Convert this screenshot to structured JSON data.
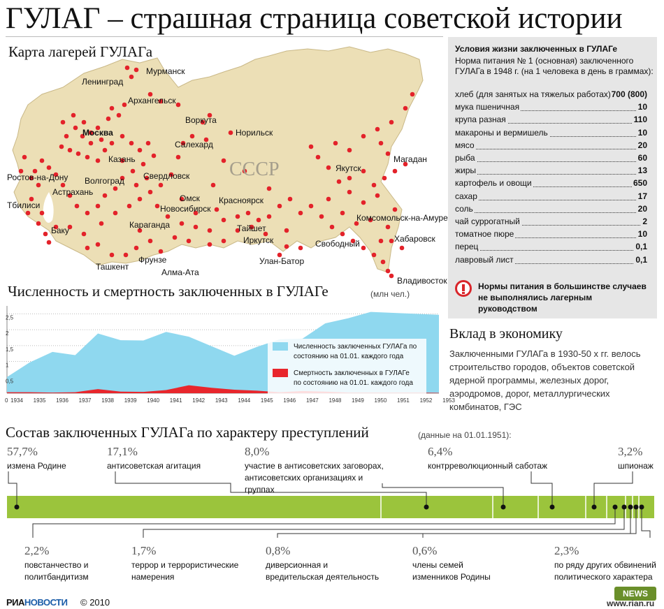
{
  "title": "ГУЛАГ – страшная страница советской истории",
  "map": {
    "title": "Карта лагерей ГУЛАГа",
    "country_label": "СССР",
    "cities": [
      "Мурманск",
      "Ленинград",
      "Архангельск",
      "Москва",
      "Воркута",
      "Салехард",
      "Норильск",
      "Казань",
      "Волгоград",
      "Астрахань",
      "Ростов-на-Дону",
      "Тбилиси",
      "Баку",
      "Свердловск",
      "Омск",
      "Новосибирск",
      "Красноярск",
      "Караганда",
      "Тайшет",
      "Иркутск",
      "Фрунзе",
      "Ташкент",
      "Алма-Ата",
      "Улан-Батор",
      "Свободный",
      "Якутск",
      "Магадан",
      "Комсомольск-на-Амуре",
      "Хабаровск",
      "Владивосток"
    ],
    "colors": {
      "land": "#ecdfb6",
      "border": "#c9b887",
      "camp": "#e3222a"
    }
  },
  "conditions": {
    "title": "Условия жизни заключенных в ГУЛАГе",
    "note": "Норма питания № 1 (основная) заключенного ГУЛАГа в 1948 г. (на 1 человека в день в граммах):",
    "rows": [
      {
        "label": "хлеб (для занятых на тяжелых работах)",
        "value": "700 (800)"
      },
      {
        "label": "мука пшеничная",
        "value": "10"
      },
      {
        "label": "крупа разная",
        "value": "110"
      },
      {
        "label": "макароны и вермишель",
        "value": "10"
      },
      {
        "label": "мясо",
        "value": "20"
      },
      {
        "label": "рыба",
        "value": "60"
      },
      {
        "label": "жиры",
        "value": "13"
      },
      {
        "label": "картофель и овощи",
        "value": "650"
      },
      {
        "label": "сахар",
        "value": "17"
      },
      {
        "label": "соль",
        "value": "20"
      },
      {
        "label": "чай суррогатный",
        "value": "2"
      },
      {
        "label": "томатное пюре",
        "value": "10"
      },
      {
        "label": "перец",
        "value": "0,1"
      },
      {
        "label": "лавровый лист",
        "value": "0,1"
      }
    ],
    "warning": "Нормы питания в большинстве случаев не выполнялись лагерным руководством",
    "warning_icon": "exclamation-icon"
  },
  "economy": {
    "title": "Вклад в экономику",
    "text": "Заключенными ГУЛАГа в 1930-50 х гг. велось строительство городов, объектов советской ядерной программы, железных дорог, аэродромов, дорог, металлургических комбинатов, ГЭС"
  },
  "chart_data": {
    "type": "area",
    "title": "Численность и смертность заключенных в ГУЛАГе",
    "unit": "(млн чел.)",
    "x": [
      "1934",
      "1935",
      "1936",
      "1937",
      "1938",
      "1939",
      "1940",
      "1941",
      "1942",
      "1943",
      "1944",
      "1945",
      "1946",
      "1947",
      "1948",
      "1949",
      "1950",
      "1951",
      "1952",
      "1953"
    ],
    "ylim": [
      0,
      2.75
    ],
    "yticks": [
      "0",
      "0,5",
      "1",
      "1,5",
      "2",
      "2,5"
    ],
    "series": [
      {
        "name": "Численность заключенных ГУЛАГа по состоянию на 01.01. каждого года",
        "color": "#8fd8ef",
        "values": [
          0.51,
          0.97,
          1.3,
          1.2,
          1.88,
          1.67,
          1.66,
          1.93,
          1.78,
          1.48,
          1.18,
          1.46,
          1.7,
          1.72,
          2.2,
          2.36,
          2.56,
          2.53,
          2.5,
          2.47
        ]
      },
      {
        "name": "Смертность заключенных в ГУЛАГе по состоянию на 01.01. каждого года",
        "color": "#e8262c",
        "values": [
          0.03,
          0.03,
          0.02,
          0.03,
          0.13,
          0.05,
          0.04,
          0.1,
          0.25,
          0.17,
          0.11,
          0.08,
          0.03,
          0.07,
          0.05,
          0.02,
          0.02,
          0.02,
          0.02,
          0.01
        ]
      }
    ],
    "legend_placement": "right-center"
  },
  "composition": {
    "title": "Состав заключенных ГУЛАГа по характеру преступлений",
    "note": "(данные на 01.01.1951):",
    "bar_color": "#9bc43c",
    "top": [
      {
        "pct": "57,7%",
        "label": "измена Родине"
      },
      {
        "pct": "17,1%",
        "label": "антисоветская агитация"
      },
      {
        "pct": "8,0%",
        "label": "участие в антисоветских заговорах, антисоветских организациях и группах"
      },
      {
        "pct": "6,4%",
        "label": "контрреволюционный саботаж"
      },
      {
        "pct": "3,2%",
        "label": "шпионаж"
      }
    ],
    "bottom": [
      {
        "pct": "2,2%",
        "label": "повстанчество и политбандитизм"
      },
      {
        "pct": "1,7%",
        "label": "террор и террористические намерения"
      },
      {
        "pct": "0,8%",
        "label": "диверсионная и вредительская деятельность"
      },
      {
        "pct": "0,6%",
        "label": "члены семей изменников Родины"
      },
      {
        "pct": "2,3%",
        "label": "по ряду других обвинений политического характера"
      }
    ]
  },
  "footer": {
    "logo_a": "РИА",
    "logo_b": "НОВОСТИ",
    "copyright": "© 2010",
    "badge": "NEWS",
    "url": "www.rian.ru"
  }
}
